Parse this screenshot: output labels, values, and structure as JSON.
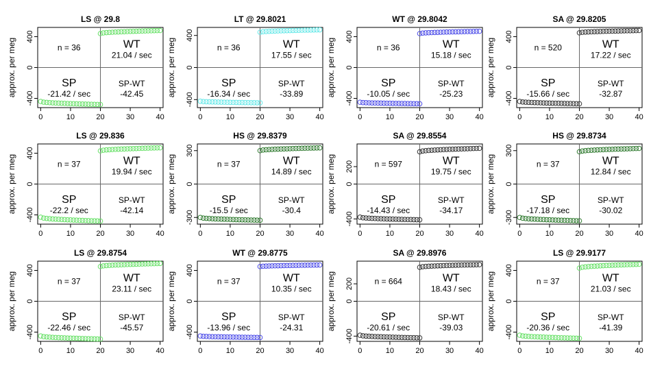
{
  "ylabel": "approx. per meg",
  "x_ticks": [
    0,
    10,
    20,
    30,
    40
  ],
  "labels": {
    "wt": "WT",
    "sp": "SP",
    "sp_wt": "SP-WT"
  },
  "colors": {
    "LS": "#66e066",
    "LT": "#66e8e8",
    "WT": "#4a4ae8",
    "SA": "#333333",
    "HS": "#2f7a2f"
  },
  "chart_data": [
    {
      "type": "scatter",
      "title": "LS @ 29.8",
      "series_code": "LS",
      "n_text": "n = 36",
      "wt_rate": "21.04 / sec",
      "sp_rate": "-21.42 / sec",
      "diff": "-42.45",
      "ylim": [
        -520,
        520
      ],
      "yticks": [
        -400,
        0,
        400
      ],
      "low": {
        "x": [
          0,
          20
        ],
        "y": [
          -440,
          -480
        ]
      },
      "high": {
        "x": [
          20,
          40
        ],
        "y": [
          440,
          480
        ]
      }
    },
    {
      "type": "scatter",
      "title": "LT @ 29.8021",
      "series_code": "LT",
      "n_text": "n = 36",
      "wt_rate": "17.55 / sec",
      "sp_rate": "-16.34 / sec",
      "diff": "-33.89",
      "ylim": [
        -500,
        500
      ],
      "yticks": [
        -400,
        0,
        400
      ],
      "low": {
        "x": [
          0,
          20
        ],
        "y": [
          -420,
          -440
        ]
      },
      "high": {
        "x": [
          20,
          40
        ],
        "y": [
          440,
          470
        ]
      }
    },
    {
      "type": "scatter",
      "title": "WT @ 29.8042",
      "series_code": "WT",
      "n_text": "n = 36",
      "wt_rate": "15.18 / sec",
      "sp_rate": "-10.05 / sec",
      "diff": "-25.23",
      "ylim": [
        -520,
        520
      ],
      "yticks": [
        -400,
        0,
        400
      ],
      "low": {
        "x": [
          0,
          20
        ],
        "y": [
          -450,
          -470
        ]
      },
      "high": {
        "x": [
          20,
          40
        ],
        "y": [
          440,
          470
        ]
      }
    },
    {
      "type": "scatter",
      "title": "SA @ 29.8205",
      "series_code": "SA",
      "n_text": "n = 520",
      "wt_rate": "17.22 / sec",
      "sp_rate": "-15.66 / sec",
      "diff": "-32.87",
      "ylim": [
        -520,
        520
      ],
      "yticks": [
        -400,
        0,
        400
      ],
      "low": {
        "x": [
          0,
          20
        ],
        "y": [
          -440,
          -470
        ]
      },
      "high": {
        "x": [
          20,
          40
        ],
        "y": [
          450,
          480
        ]
      }
    },
    {
      "type": "scatter",
      "title": "LS @ 29.836",
      "series_code": "LS",
      "n_text": "n = 37",
      "wt_rate": "19.94 / sec",
      "sp_rate": "-22.2 / sec",
      "diff": "-42.14",
      "ylim": [
        -520,
        520
      ],
      "yticks": [
        -400,
        0,
        400
      ],
      "low": {
        "x": [
          0,
          20
        ],
        "y": [
          -430,
          -480
        ]
      },
      "high": {
        "x": [
          20,
          40
        ],
        "y": [
          430,
          470
        ]
      }
    },
    {
      "type": "scatter",
      "title": "HS @ 29.8379",
      "series_code": "HS",
      "n_text": "n = 37",
      "wt_rate": "14.89 / sec",
      "sp_rate": "-15.5 / sec",
      "diff": "-30.4",
      "ylim": [
        -360,
        360
      ],
      "yticks": [
        -300,
        0,
        300
      ],
      "low": {
        "x": [
          0,
          20
        ],
        "y": [
          -300,
          -325
        ]
      },
      "high": {
        "x": [
          20,
          40
        ],
        "y": [
          300,
          325
        ]
      }
    },
    {
      "type": "scatter",
      "title": "SA @ 29.8554",
      "series_code": "SA",
      "n_text": "n = 597",
      "wt_rate": "19.75 / sec",
      "sp_rate": "-14.43 / sec",
      "diff": "-34.17",
      "ylim": [
        -460,
        460
      ],
      "yticks": [
        -400,
        0,
        200
      ],
      "low": {
        "x": [
          0,
          20
        ],
        "y": [
          -380,
          -410
        ]
      },
      "high": {
        "x": [
          20,
          40
        ],
        "y": [
          370,
          410
        ]
      }
    },
    {
      "type": "scatter",
      "title": "HS @ 29.8734",
      "series_code": "HS",
      "n_text": "n = 37",
      "wt_rate": "12.84 / sec",
      "sp_rate": "-17.18 / sec",
      "diff": "-30.02",
      "ylim": [
        -360,
        360
      ],
      "yticks": [
        -300,
        0,
        300
      ],
      "low": {
        "x": [
          0,
          20
        ],
        "y": [
          -300,
          -330
        ]
      },
      "high": {
        "x": [
          20,
          40
        ],
        "y": [
          290,
          320
        ]
      }
    },
    {
      "type": "scatter",
      "title": "LS @ 29.8754",
      "series_code": "LS",
      "n_text": "n = 37",
      "wt_rate": "23.11 / sec",
      "sp_rate": "-22.46 / sec",
      "diff": "-45.57",
      "ylim": [
        -520,
        520
      ],
      "yticks": [
        -400,
        0,
        400
      ],
      "low": {
        "x": [
          0,
          20
        ],
        "y": [
          -450,
          -490
        ]
      },
      "high": {
        "x": [
          20,
          40
        ],
        "y": [
          450,
          490
        ]
      }
    },
    {
      "type": "scatter",
      "title": "WT @ 29.8775",
      "series_code": "WT",
      "n_text": "n = 37",
      "wt_rate": "10.35 / sec",
      "sp_rate": "-13.96 / sec",
      "diff": "-24.31",
      "ylim": [
        -520,
        520
      ],
      "yticks": [
        -400,
        0,
        400
      ],
      "low": {
        "x": [
          0,
          20
        ],
        "y": [
          -450,
          -470
        ]
      },
      "high": {
        "x": [
          20,
          40
        ],
        "y": [
          450,
          470
        ]
      }
    },
    {
      "type": "scatter",
      "title": "SA @ 29.8976",
      "series_code": "SA",
      "n_text": "n = 664",
      "wt_rate": "18.43 / sec",
      "sp_rate": "-20.61 / sec",
      "diff": "-39.03",
      "ylim": [
        -460,
        460
      ],
      "yticks": [
        -400,
        0,
        200
      ],
      "low": {
        "x": [
          0,
          20
        ],
        "y": [
          -390,
          -420
        ]
      },
      "high": {
        "x": [
          20,
          40
        ],
        "y": [
          390,
          420
        ]
      }
    },
    {
      "type": "scatter",
      "title": "LS @ 29.9177",
      "series_code": "LS",
      "n_text": "n = 37",
      "wt_rate": "21.03 / sec",
      "sp_rate": "-20.36 / sec",
      "diff": "-41.39",
      "ylim": [
        -520,
        520
      ],
      "yticks": [
        -400,
        0,
        400
      ],
      "low": {
        "x": [
          0,
          20
        ],
        "y": [
          -440,
          -480
        ]
      },
      "high": {
        "x": [
          20,
          40
        ],
        "y": [
          430,
          480
        ]
      }
    }
  ]
}
